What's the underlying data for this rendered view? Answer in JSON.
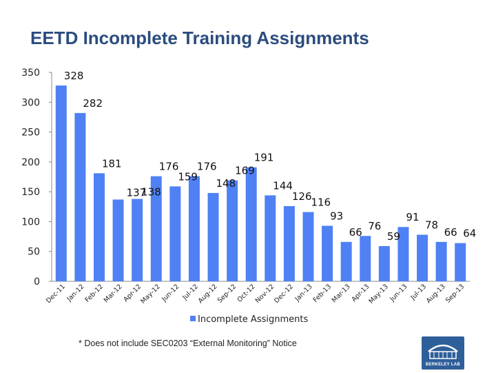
{
  "slide": {
    "title": "EETD Incomplete Training Assignments",
    "footnote": "* Does not include SEC0203 “External Monitoring” Notice",
    "logo_text": "BERKELEY LAB"
  },
  "chart_data": {
    "type": "bar",
    "title": "",
    "xlabel": "",
    "ylabel": "",
    "ylim": [
      0,
      350
    ],
    "yticks": [
      0,
      50,
      100,
      150,
      200,
      250,
      300,
      350
    ],
    "grid": false,
    "legend_position": "bottom",
    "categories": [
      "Dec-11",
      "Jan-12",
      "Feb-12",
      "Mar-12",
      "Apr-12",
      "May-12",
      "Jun-12",
      "Jul-12",
      "Aug-12",
      "Sep-12",
      "Oct-12",
      "Nov-12",
      "Dec-12",
      "Jan-13",
      "Feb-13",
      "Mar-13",
      "Apr-13",
      "May-13",
      "Jun-13",
      "Jul-13",
      "Aug-13",
      "Sep-13"
    ],
    "series": [
      {
        "name": "Incomplete Assignments",
        "color": "#4f81f5",
        "values": [
          328,
          282,
          181,
          137,
          138,
          176,
          159,
          176,
          148,
          169,
          191,
          144,
          126,
          116,
          93,
          66,
          76,
          59,
          91,
          78,
          66,
          64
        ]
      }
    ]
  }
}
